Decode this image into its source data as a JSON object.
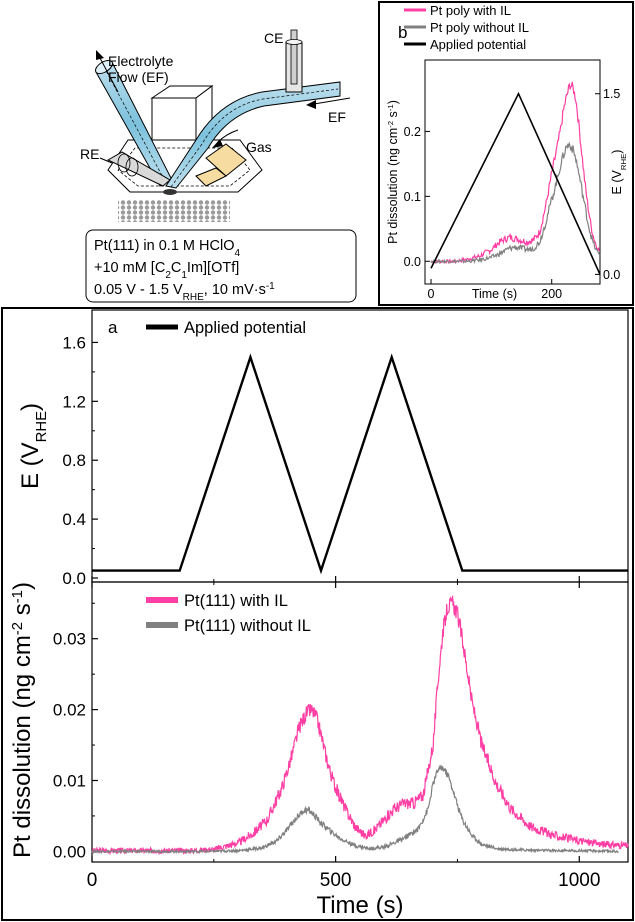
{
  "schematic": {
    "labels": {
      "ce": "CE",
      "electrolyte_flow": "Electrolyte",
      "electrolyte_flow_2": "Flow (EF)",
      "ef": "EF",
      "re": "RE",
      "gas": "Gas"
    },
    "conditions": {
      "line1": "Pt(111) in 0.1 M HClO",
      "line1_sub": "4",
      "line2_pre": "+10 mM [C",
      "line2_sub1": "2",
      "line2_mid": "C",
      "line2_sub2": "1",
      "line2_post": "Im][OTf]",
      "line3_pre": "0.05 V - 1.5 V",
      "line3_sub": "RHE",
      "line3_mid": ", 10 mV·s",
      "line3_sup": "-1"
    }
  },
  "chart_data": [
    {
      "panel": "b",
      "type": "line",
      "xlabel": "Time (s)",
      "ylabel_left": "Pt dissolution (ng cm-2 s-1)",
      "ylabel_right": "E (VRHE)",
      "ylabel_left_parts": {
        "main": "Pt dissolution (ng cm",
        "sup1": "-2",
        "mid": " s",
        "sup2": "-1",
        "end": ")"
      },
      "ylabel_right_parts": {
        "main": "E (V",
        "sub": "RHE",
        "end": ")"
      },
      "xlim": [
        -10,
        280
      ],
      "ylim_left": [
        -0.035,
        0.31
      ],
      "ylim_right": [
        -0.08,
        1.78
      ],
      "x_ticks": [
        0,
        200
      ],
      "y_ticks_left": [
        "0.0",
        "0.1",
        "0.2"
      ],
      "y_ticks_right": [
        "0.0",
        "1.5"
      ],
      "legend_placement": "top",
      "series": [
        {
          "name": "Pt poly with IL",
          "color": "#ff3fa4",
          "axis": "left",
          "x": [
            0,
            20,
            40,
            60,
            80,
            100,
            110,
            120,
            130,
            140,
            150,
            160,
            170,
            180,
            190,
            200,
            210,
            215,
            220,
            225,
            230,
            235,
            240,
            245,
            250,
            255,
            260,
            265,
            270,
            275,
            280
          ],
          "y": [
            0.0,
            0.0,
            0.0,
            0.003,
            0.008,
            0.018,
            0.027,
            0.033,
            0.037,
            0.035,
            0.032,
            0.03,
            0.033,
            0.045,
            0.085,
            0.135,
            0.18,
            0.205,
            0.235,
            0.255,
            0.272,
            0.268,
            0.25,
            0.21,
            0.165,
            0.12,
            0.085,
            0.055,
            0.035,
            0.022,
            0.015
          ]
        },
        {
          "name": "Pt poly without IL",
          "color": "#808080",
          "axis": "left",
          "x": [
            0,
            20,
            40,
            60,
            80,
            100,
            110,
            120,
            130,
            140,
            150,
            160,
            170,
            180,
            190,
            200,
            210,
            215,
            220,
            225,
            230,
            235,
            240,
            245,
            250,
            255,
            260,
            265,
            270,
            275,
            280
          ],
          "y": [
            0.0,
            0.0,
            0.0,
            0.0,
            0.002,
            0.006,
            0.01,
            0.015,
            0.02,
            0.022,
            0.02,
            0.018,
            0.02,
            0.03,
            0.06,
            0.095,
            0.13,
            0.15,
            0.165,
            0.178,
            0.18,
            0.172,
            0.158,
            0.135,
            0.11,
            0.085,
            0.06,
            0.04,
            0.025,
            0.015,
            0.01
          ]
        },
        {
          "name": "Applied potential",
          "color": "#000000",
          "axis": "right",
          "x": [
            0,
            145,
            280
          ],
          "y": [
            0.05,
            1.5,
            0.0
          ]
        }
      ]
    },
    {
      "panel": "a",
      "type": "line",
      "xlabel": "",
      "ylabel": "E (VRHE)",
      "ylabel_parts": {
        "main": "E (V",
        "sub": "RHE",
        "end": ")"
      },
      "xlim": [
        0,
        1100
      ],
      "ylim": [
        0,
        1.8
      ],
      "x_ticks": [
        0,
        500,
        1000
      ],
      "y_ticks": [
        "0.0",
        "0.4",
        "0.8",
        "1.2",
        "1.6"
      ],
      "legend_placement": "top-left",
      "series": [
        {
          "name": "Applied potential",
          "color": "#000000",
          "x": [
            0,
            180,
            325,
            470,
            615,
            760,
            1100
          ],
          "y": [
            0.05,
            0.05,
            1.5,
            0.05,
            1.5,
            0.05,
            0.05
          ]
        }
      ]
    },
    {
      "panel": "a-lower",
      "type": "line",
      "xlabel": "Time (s)",
      "ylabel": "Pt dissolution (ng cm-2 s-1)",
      "ylabel_parts": {
        "main": "Pt dissolution (ng cm",
        "sup1": "-2",
        "mid": " s",
        "sup2": "-1",
        "end": ")"
      },
      "xlim": [
        0,
        1100
      ],
      "ylim": [
        -0.0015,
        0.038
      ],
      "x_ticks": [
        "0",
        "500",
        "1000"
      ],
      "y_ticks": [
        "0.00",
        "0.01",
        "0.02",
        "0.03"
      ],
      "legend_placement": "top-left",
      "series": [
        {
          "name": "Pt(111) with IL",
          "color": "#ff3fa4",
          "x": [
            0,
            200,
            250,
            300,
            330,
            360,
            390,
            410,
            425,
            440,
            450,
            460,
            470,
            480,
            490,
            500,
            520,
            540,
            560,
            580,
            600,
            620,
            640,
            660,
            680,
            700,
            710,
            720,
            730,
            740,
            750,
            760,
            770,
            780,
            800,
            830,
            860,
            900,
            950,
            1000,
            1050,
            1100
          ],
          "y": [
            0.0001,
            0.0001,
            0.0003,
            0.0012,
            0.0025,
            0.0045,
            0.009,
            0.0135,
            0.0175,
            0.0195,
            0.02,
            0.019,
            0.0165,
            0.0135,
            0.011,
            0.009,
            0.006,
            0.0035,
            0.0022,
            0.003,
            0.0045,
            0.006,
            0.0068,
            0.0068,
            0.008,
            0.015,
            0.024,
            0.031,
            0.0345,
            0.035,
            0.0335,
            0.03,
            0.0255,
            0.021,
            0.015,
            0.0095,
            0.006,
            0.0035,
            0.0022,
            0.0015,
            0.001,
            0.0008
          ]
        },
        {
          "name": "Pt(111) without IL",
          "color": "#808080",
          "x": [
            0,
            250,
            300,
            350,
            380,
            400,
            420,
            435,
            445,
            455,
            470,
            490,
            510,
            540,
            570,
            600,
            640,
            670,
            690,
            700,
            710,
            720,
            730,
            740,
            750,
            760,
            780,
            800,
            830,
            880,
            950,
            1000,
            1080
          ],
          "y": [
            0.0,
            0.0,
            0.0001,
            0.0005,
            0.0015,
            0.003,
            0.0048,
            0.0058,
            0.0058,
            0.0052,
            0.004,
            0.0028,
            0.0018,
            0.0008,
            0.0004,
            0.0006,
            0.0018,
            0.0032,
            0.006,
            0.0095,
            0.0115,
            0.0118,
            0.0108,
            0.0088,
            0.0065,
            0.0045,
            0.0022,
            0.001,
            0.0004,
            0.0002,
            0.0001,
            0.0001,
            0.0
          ]
        }
      ]
    }
  ]
}
